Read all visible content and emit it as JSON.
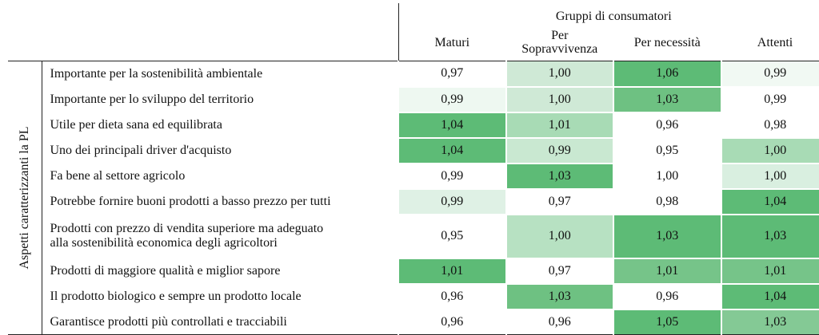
{
  "header": {
    "group_title": "Gruppi di consumatori",
    "columns": [
      "Maturi",
      "Per Sopravvivenza",
      "Per necessità",
      "Attenti"
    ],
    "column_lines": [
      [
        "Maturi"
      ],
      [
        "Per",
        "Sopravvivenza"
      ],
      [
        "Per necessità"
      ],
      [
        "Attenti"
      ]
    ]
  },
  "side_label": "Aspetti caratterizzanti la PL",
  "rows": [
    {
      "label_lines": [
        "Importante per la sostenibilità ambientale"
      ],
      "values": [
        "0,97",
        "1,00",
        "1,06",
        "0,99"
      ]
    },
    {
      "label_lines": [
        "Importante per lo sviluppo del territorio"
      ],
      "values": [
        "0,99",
        "1,00",
        "1,03",
        "0,99"
      ]
    },
    {
      "label_lines": [
        "Utile per dieta sana ed equilibrata"
      ],
      "values": [
        "1,04",
        "1,01",
        "0,96",
        "0,98"
      ]
    },
    {
      "label_lines": [
        "Uno dei principali driver d'acquisto"
      ],
      "values": [
        "1,04",
        "0,99",
        "0,95",
        "1,00"
      ]
    },
    {
      "label_lines": [
        "Fa bene al settore agricolo"
      ],
      "values": [
        "0,99",
        "1,03",
        "1,00",
        "1,00"
      ]
    },
    {
      "label_lines": [
        "Potrebbe fornire buoni prodotti a basso prezzo per tutti"
      ],
      "values": [
        "0,99",
        "0,97",
        "0,98",
        "1,04"
      ]
    },
    {
      "label_lines": [
        "Prodotti con prezzo di vendita superiore ma adeguato",
        "alla sostenibilità economica degli agricoltori"
      ],
      "values": [
        "0,95",
        "1,00",
        "1,03",
        "1,03"
      ]
    },
    {
      "label_lines": [
        "Prodotti di maggiore qualità e miglior sapore"
      ],
      "values": [
        "1,01",
        "0,97",
        "1,01",
        "1,01"
      ]
    },
    {
      "label_lines": [
        "Il prodotto biologico e sempre un prodotto locale"
      ],
      "values": [
        "0,96",
        "1,03",
        "0,96",
        "1,04"
      ]
    },
    {
      "label_lines": [
        "Garantisce prodotti più controllati e tracciabili"
      ],
      "values": [
        "0,96",
        "0,96",
        "1,05",
        "1,03"
      ]
    }
  ],
  "cell_colors": [
    [
      "#ffffff",
      "#cfe9d6",
      "#5dbb76",
      "#f1f9f3"
    ],
    [
      "#eef8f1",
      "#cfe9d6",
      "#6ec182",
      "#ffffff"
    ],
    [
      "#5dbb76",
      "#a8dbb5",
      "#ffffff",
      "#ffffff"
    ],
    [
      "#5dbb76",
      "#c9e8d1",
      "#ffffff",
      "#a8dbb5"
    ],
    [
      "#ffffff",
      "#5dbb76",
      "#ffffff",
      "#d9efe0"
    ],
    [
      "#dff1e5",
      "#ffffff",
      "#ffffff",
      "#5dbb76"
    ],
    [
      "#ffffff",
      "#b7e1c2",
      "#5dbb76",
      "#5dbb76"
    ],
    [
      "#5dbb76",
      "#ffffff",
      "#76c489",
      "#76c489"
    ],
    [
      "#ffffff",
      "#6ec182",
      "#ffffff",
      "#5dbb76"
    ],
    [
      "#ffffff",
      "#ffffff",
      "#5dbb76",
      "#84c995"
    ]
  ]
}
